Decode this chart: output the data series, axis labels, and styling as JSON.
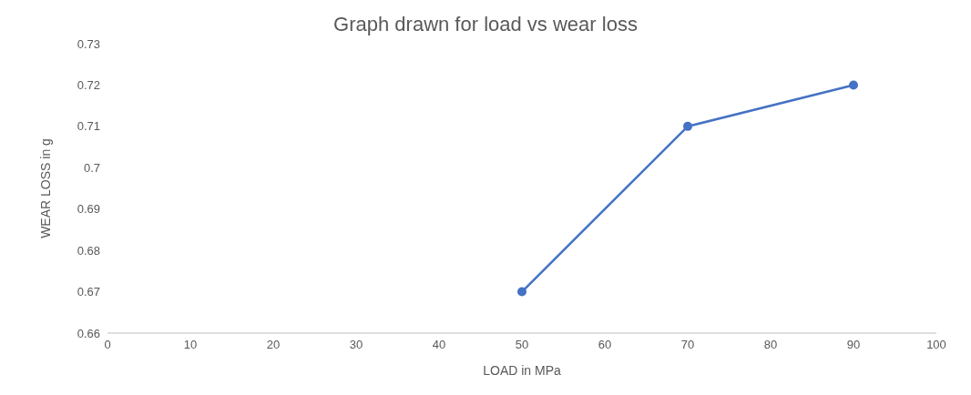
{
  "chart_data": {
    "type": "line",
    "title": "Graph drawn for load vs wear loss",
    "xlabel": "LOAD in MPa",
    "ylabel": "WEAR LOSS in g",
    "x": [
      50,
      70,
      90
    ],
    "series": [
      {
        "color": "#4472c4",
        "values": [
          0.67,
          0.71,
          0.72
        ]
      }
    ],
    "xlim": [
      0,
      100
    ],
    "xticks": [
      0,
      10,
      20,
      30,
      40,
      50,
      60,
      70,
      80,
      90,
      100
    ],
    "ylim": [
      0.66,
      0.73
    ],
    "yticks": [
      0.66,
      0.67,
      0.68,
      0.69,
      0.7,
      0.71,
      0.72,
      0.73
    ],
    "grid": false,
    "marker": "circle",
    "line_style": "solid"
  }
}
